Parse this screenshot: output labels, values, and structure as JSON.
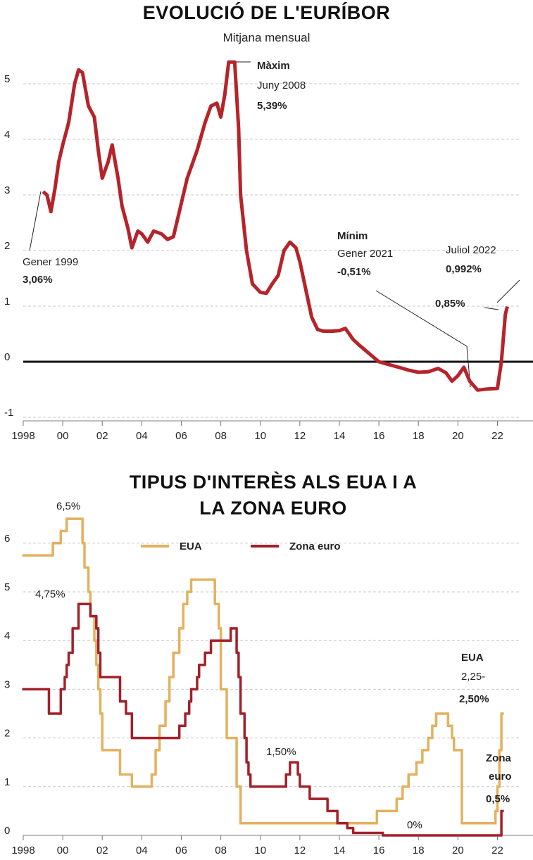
{
  "chart_data": [
    {
      "type": "line",
      "title": "EVOLUCIÓ DE L'EURÍBOR",
      "subtitle": "Mitjana mensual",
      "series": [
        {
          "name": "Euríbor",
          "color": "#b5242a",
          "x": [
            1999.0,
            1999.2,
            1999.4,
            1999.6,
            1999.8,
            2000.0,
            2000.3,
            2000.6,
            2000.8,
            2001.0,
            2001.3,
            2001.6,
            2001.8,
            2002.0,
            2002.3,
            2002.5,
            2002.8,
            2003.0,
            2003.3,
            2003.5,
            2003.8,
            2004.0,
            2004.3,
            2004.6,
            2005.0,
            2005.3,
            2005.6,
            2005.9,
            2006.3,
            2006.8,
            2007.2,
            2007.5,
            2007.8,
            2008.0,
            2008.2,
            2008.4,
            2008.7,
            2008.9,
            2009.0,
            2009.3,
            2009.6,
            2010.0,
            2010.3,
            2010.6,
            2010.9,
            2011.2,
            2011.5,
            2011.8,
            2012.0,
            2012.3,
            2012.6,
            2012.9,
            2013.2,
            2013.6,
            2014.0,
            2014.3,
            2014.7,
            2015.0,
            2015.4,
            2015.8,
            2016.0,
            2016.5,
            2017.0,
            2017.5,
            2018.0,
            2018.5,
            2019.0,
            2019.4,
            2019.7,
            2020.0,
            2020.3,
            2020.6,
            2021.0,
            2021.5,
            2022.0,
            2022.2,
            2022.4,
            2022.5
          ],
          "values": [
            3.06,
            3.0,
            2.7,
            3.1,
            3.6,
            3.9,
            4.3,
            5.0,
            5.25,
            5.2,
            4.6,
            4.4,
            3.8,
            3.3,
            3.6,
            3.9,
            3.3,
            2.8,
            2.4,
            2.05,
            2.35,
            2.3,
            2.15,
            2.35,
            2.3,
            2.2,
            2.25,
            2.7,
            3.3,
            3.8,
            4.3,
            4.6,
            4.65,
            4.4,
            4.8,
            5.39,
            5.39,
            4.2,
            3.0,
            2.0,
            1.4,
            1.25,
            1.23,
            1.4,
            1.55,
            2.0,
            2.15,
            2.05,
            1.8,
            1.3,
            0.8,
            0.58,
            0.55,
            0.55,
            0.56,
            0.6,
            0.4,
            0.3,
            0.18,
            0.06,
            0.0,
            -0.05,
            -0.1,
            -0.15,
            -0.19,
            -0.18,
            -0.12,
            -0.2,
            -0.35,
            -0.25,
            -0.1,
            -0.35,
            -0.51,
            -0.49,
            -0.48,
            0.0,
            0.85,
            0.992
          ]
        }
      ],
      "xlim": [
        1998,
        2023.8
      ],
      "xticks": [
        1998,
        {
          "value": 2000,
          "label": "00"
        },
        {
          "value": 2002,
          "label": "02"
        },
        {
          "value": 2004,
          "label": "04"
        },
        {
          "value": 2006,
          "label": "06"
        },
        {
          "value": 2008,
          "label": "08"
        },
        {
          "value": 2010,
          "label": "10"
        },
        {
          "value": 2012,
          "label": "12"
        },
        {
          "value": 2014,
          "label": "14"
        },
        {
          "value": 2016,
          "label": "16"
        },
        {
          "value": 2018,
          "label": "18"
        },
        {
          "value": 2020,
          "label": "20"
        },
        {
          "value": 2022,
          "label": "22"
        }
      ],
      "ylim": [
        -1,
        5.5
      ],
      "yticks": [
        -1,
        0,
        1,
        2,
        3,
        4,
        5
      ],
      "grid": true,
      "zero_line": true,
      "annotations": [
        "Màxim",
        "Juny 2008",
        "5,39%",
        "Mínim",
        "Gener 2021",
        "-0,51%",
        "Juliol 2022",
        "0,992%",
        "0,85%",
        "Gener 1999",
        "3,06%"
      ]
    },
    {
      "type": "step",
      "title": "TIPUS D'INTERÈS ALS EUA I A LA ZONA EURO",
      "legend": "top",
      "series": [
        {
          "name": "EUA",
          "color": "#e3b15e",
          "x": [
            1998.0,
            1999.5,
            1999.9,
            2000.2,
            2001.0,
            2001.1,
            2001.3,
            2001.4,
            2001.6,
            2001.7,
            2001.8,
            2001.9,
            2002.0,
            2002.9,
            2003.5,
            2004.5,
            2004.7,
            2004.9,
            2005.2,
            2005.4,
            2005.6,
            2005.9,
            2006.1,
            2006.3,
            2006.5,
            2007.7,
            2007.9,
            2008.0,
            2008.3,
            2008.8,
            2009.0,
            2015.9,
            2016.9,
            2017.2,
            2017.5,
            2017.9,
            2018.2,
            2018.5,
            2018.7,
            2018.9,
            2019.5,
            2019.7,
            2019.8,
            2020.2,
            2021.9,
            2022.0,
            2022.1,
            2022.2
          ],
          "values": [
            5.75,
            6.0,
            6.25,
            6.5,
            6.0,
            5.5,
            5.0,
            4.5,
            4.0,
            3.5,
            3.0,
            2.5,
            1.75,
            1.25,
            1.0,
            1.25,
            1.75,
            2.25,
            2.75,
            3.25,
            3.75,
            4.25,
            4.75,
            5.0,
            5.25,
            4.75,
            4.25,
            3.0,
            2.0,
            1.0,
            0.25,
            0.5,
            0.75,
            1.0,
            1.25,
            1.5,
            1.75,
            2.0,
            2.25,
            2.5,
            2.25,
            2.0,
            1.75,
            0.25,
            0.5,
            1.0,
            1.75,
            2.5
          ]
        },
        {
          "name": "Zona euro",
          "color": "#a3202a",
          "x": [
            1998.0,
            1999.3,
            1999.9,
            2000.1,
            2000.2,
            2000.3,
            2000.5,
            2000.8,
            2001.4,
            2001.7,
            2001.8,
            2001.9,
            2002.9,
            2003.2,
            2003.5,
            2005.9,
            2006.2,
            2006.4,
            2006.5,
            2006.8,
            2006.9,
            2007.2,
            2007.5,
            2008.5,
            2008.8,
            2008.9,
            2009.0,
            2009.2,
            2009.3,
            2009.4,
            2009.5,
            2011.3,
            2011.5,
            2011.9,
            2012.0,
            2012.5,
            2013.4,
            2013.9,
            2014.4,
            2014.7,
            2016.2,
            2022.2
          ],
          "values": [
            3.0,
            2.5,
            3.0,
            3.25,
            3.5,
            3.75,
            4.25,
            4.75,
            4.5,
            4.25,
            3.75,
            3.25,
            2.75,
            2.5,
            2.0,
            2.25,
            2.5,
            2.75,
            3.0,
            3.25,
            3.5,
            3.75,
            4.0,
            4.25,
            3.75,
            3.25,
            2.5,
            2.0,
            1.5,
            1.25,
            1.0,
            1.25,
            1.5,
            1.25,
            1.0,
            0.75,
            0.5,
            0.25,
            0.15,
            0.05,
            0.0,
            0.5
          ]
        }
      ],
      "xlim": [
        1998,
        2023.8
      ],
      "xticks": [
        1998,
        {
          "value": 2000,
          "label": "00"
        },
        {
          "value": 2002,
          "label": "02"
        },
        {
          "value": 2004,
          "label": "04"
        },
        {
          "value": 2006,
          "label": "06"
        },
        {
          "value": 2008,
          "label": "08"
        },
        {
          "value": 2010,
          "label": "10"
        },
        {
          "value": 2012,
          "label": "12"
        },
        {
          "value": 2014,
          "label": "14"
        },
        {
          "value": 2016,
          "label": "16"
        },
        {
          "value": 2018,
          "label": "18"
        },
        {
          "value": 2020,
          "label": "20"
        },
        {
          "value": 2022,
          "label": "22"
        }
      ],
      "ylim": [
        0,
        6.4
      ],
      "yticks": [
        0,
        1,
        2,
        3,
        4,
        5,
        6
      ],
      "grid": true,
      "annotations": [
        "6,5%",
        "4,75%",
        "1,50%",
        "0%",
        "EUA",
        "2,25-",
        "2,50%",
        "Zona",
        "euro",
        "0,5%"
      ]
    }
  ]
}
